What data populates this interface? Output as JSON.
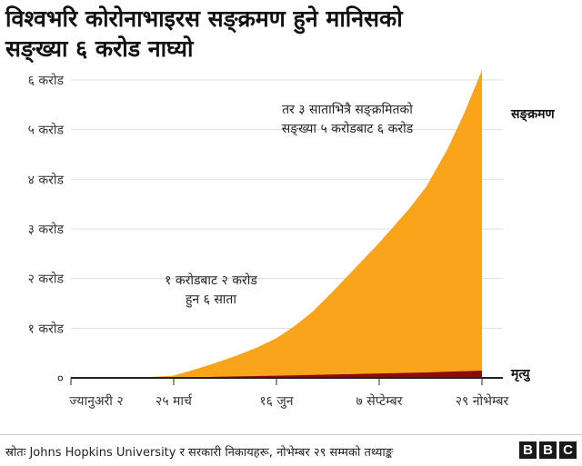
{
  "title_line1": "विश्वभरि कोरोनाभाइरस सङ्क्रमण हुने मानिसको",
  "title_line2": "सङ्ख्या ६ करोड नाघ्यो",
  "source": "स्रोतः Johns Hopkins University र सरकारी निकायहरू, नोभेम्बर २९ सम्मको तथ्याङ्क",
  "logo": [
    "B",
    "B",
    "C"
  ],
  "colors": {
    "cases": "#f9a41b",
    "deaths": "#8c0c0c",
    "grid": "#dddddd",
    "axis": "#222222",
    "text": "#333333"
  },
  "chart_data": {
    "type": "area",
    "title": "विश्वभरि कोरोनाभाइरस सङ्क्रमण हुने मानिसको सङ्ख्या ६ करोड नाघ्यो",
    "xlabel": "",
    "ylabel": "",
    "x_ticks": [
      "ज्यानुअरी २",
      "२५ मार्च",
      "१६ जुन",
      "७ सेप्टेम्बर",
      "२९ नोभेम्बर"
    ],
    "y_ticks": [
      "०",
      "१ करोड",
      "२ करोड",
      "३ करोड",
      "४ करोड",
      "५ करोड",
      "६ करोड"
    ],
    "ylim": [
      0,
      60000000
    ],
    "grid": true,
    "series": [
      {
        "name": "सङ्क्रमण",
        "points": [
          [
            "2020-01-02",
            0
          ],
          [
            "2020-02-01",
            10000
          ],
          [
            "2020-03-01",
            90000
          ],
          [
            "2020-03-25",
            450000
          ],
          [
            "2020-04-15",
            2000000
          ],
          [
            "2020-05-01",
            3300000
          ],
          [
            "2020-05-15",
            4500000
          ],
          [
            "2020-06-01",
            6200000
          ],
          [
            "2020-06-16",
            8000000
          ],
          [
            "2020-07-01",
            10500000
          ],
          [
            "2020-07-15",
            13300000
          ],
          [
            "2020-08-01",
            17500000
          ],
          [
            "2020-08-15",
            21200000
          ],
          [
            "2020-09-07",
            27200000
          ],
          [
            "2020-10-01",
            34000000
          ],
          [
            "2020-10-15",
            38500000
          ],
          [
            "2020-11-01",
            46000000
          ],
          [
            "2020-11-15",
            53500000
          ],
          [
            "2020-11-29",
            62000000
          ]
        ]
      },
      {
        "name": "मृत्यु",
        "points": [
          [
            "2020-01-02",
            0
          ],
          [
            "2020-03-25",
            20000
          ],
          [
            "2020-05-01",
            230000
          ],
          [
            "2020-06-16",
            440000
          ],
          [
            "2020-08-01",
            680000
          ],
          [
            "2020-09-07",
            890000
          ],
          [
            "2020-10-15",
            1100000
          ],
          [
            "2020-11-29",
            1460000
          ]
        ]
      }
    ],
    "annotations": [
      {
        "text": [
          "तर ३ साताभित्रै सङ्क्रमितको",
          "सङ्ख्या ५ करोडबाट ६ करोड"
        ],
        "at": [
          "2020-09-26",
          53000000
        ]
      },
      {
        "text": [
          "१ करोडबाट २ करोड",
          "हुन ६ साता"
        ],
        "at": [
          "2020-06-01",
          20500000
        ]
      }
    ]
  }
}
